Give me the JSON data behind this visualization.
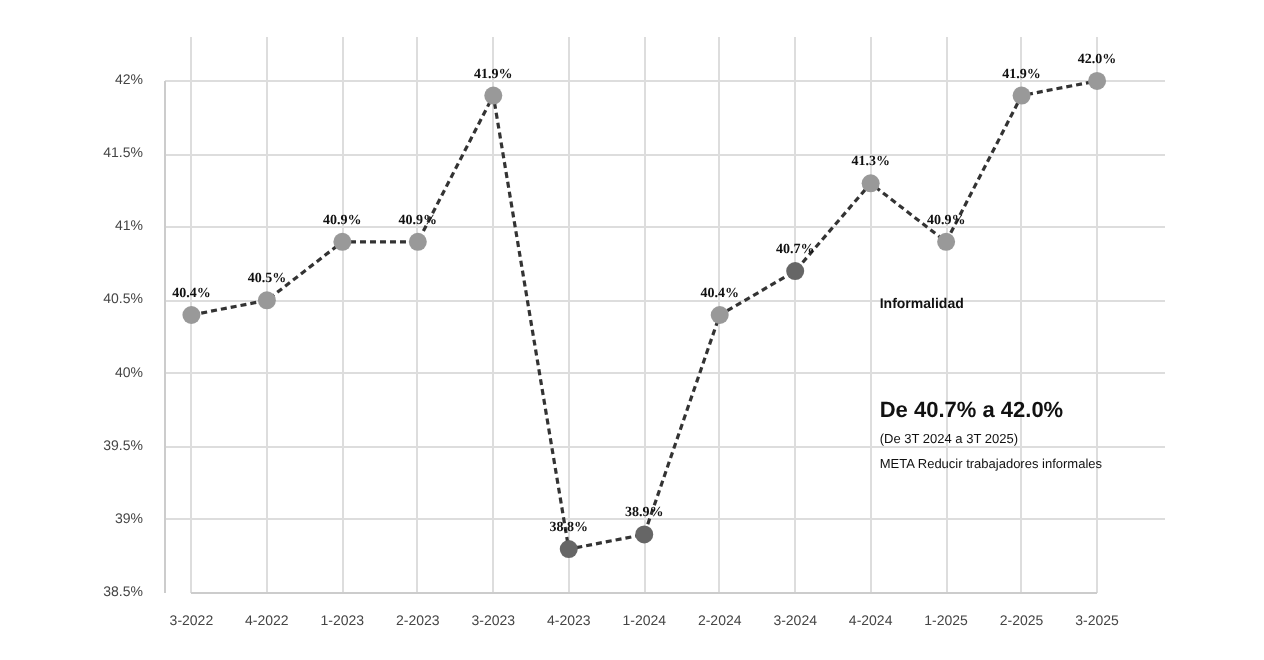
{
  "chart_data": {
    "type": "line",
    "categories": [
      "3-2022",
      "4-2022",
      "1-2023",
      "2-2023",
      "3-2023",
      "4-2023",
      "1-2024",
      "2-2024",
      "3-2024",
      "4-2024",
      "1-2025",
      "2-2025",
      "3-2025"
    ],
    "series": [
      {
        "color": "#333333",
        "values": [
          40.4,
          40.5,
          40.9,
          40.9,
          41.9,
          38.8,
          38.9,
          40.4,
          40.7,
          41.3,
          40.9,
          41.9,
          42.0
        ],
        "colors": [
          "#999999",
          "#999999",
          "#999999",
          "#999999",
          "#999999",
          "#666666",
          "#666666",
          "#999999",
          "#666666",
          "#999999",
          "#999999",
          "#999999",
          "#999999"
        ],
        "value_labels": [
          "40.4%",
          "40.5%",
          "40.9%",
          "40.9%",
          "41.9%",
          "38.8%",
          "38.9%",
          "40.4%",
          "40.7%",
          "41.3%",
          "40.9%",
          "41.9%",
          "42.0%"
        ]
      }
    ],
    "ylim": [
      38.5,
      42
    ],
    "yticks": [
      {
        "value": 38.5,
        "label": "38.5%"
      },
      {
        "value": 39,
        "label": "39%"
      },
      {
        "value": 39.5,
        "label": "39.5%"
      },
      {
        "value": 40,
        "label": "40%"
      },
      {
        "value": 40.5,
        "label": "40.5%"
      },
      {
        "value": 41,
        "label": "41%"
      },
      {
        "value": 41.5,
        "label": "41.5%"
      },
      {
        "value": 42,
        "label": "42%"
      }
    ],
    "grid": true,
    "marker": "circle",
    "line_style": "dashed",
    "annotations": [
      "Informalidad",
      "De 40.7% a 42.0%",
      "(De 3T 2024 a 3T 2025)",
      "META Reducir trabajadores informales"
    ]
  }
}
